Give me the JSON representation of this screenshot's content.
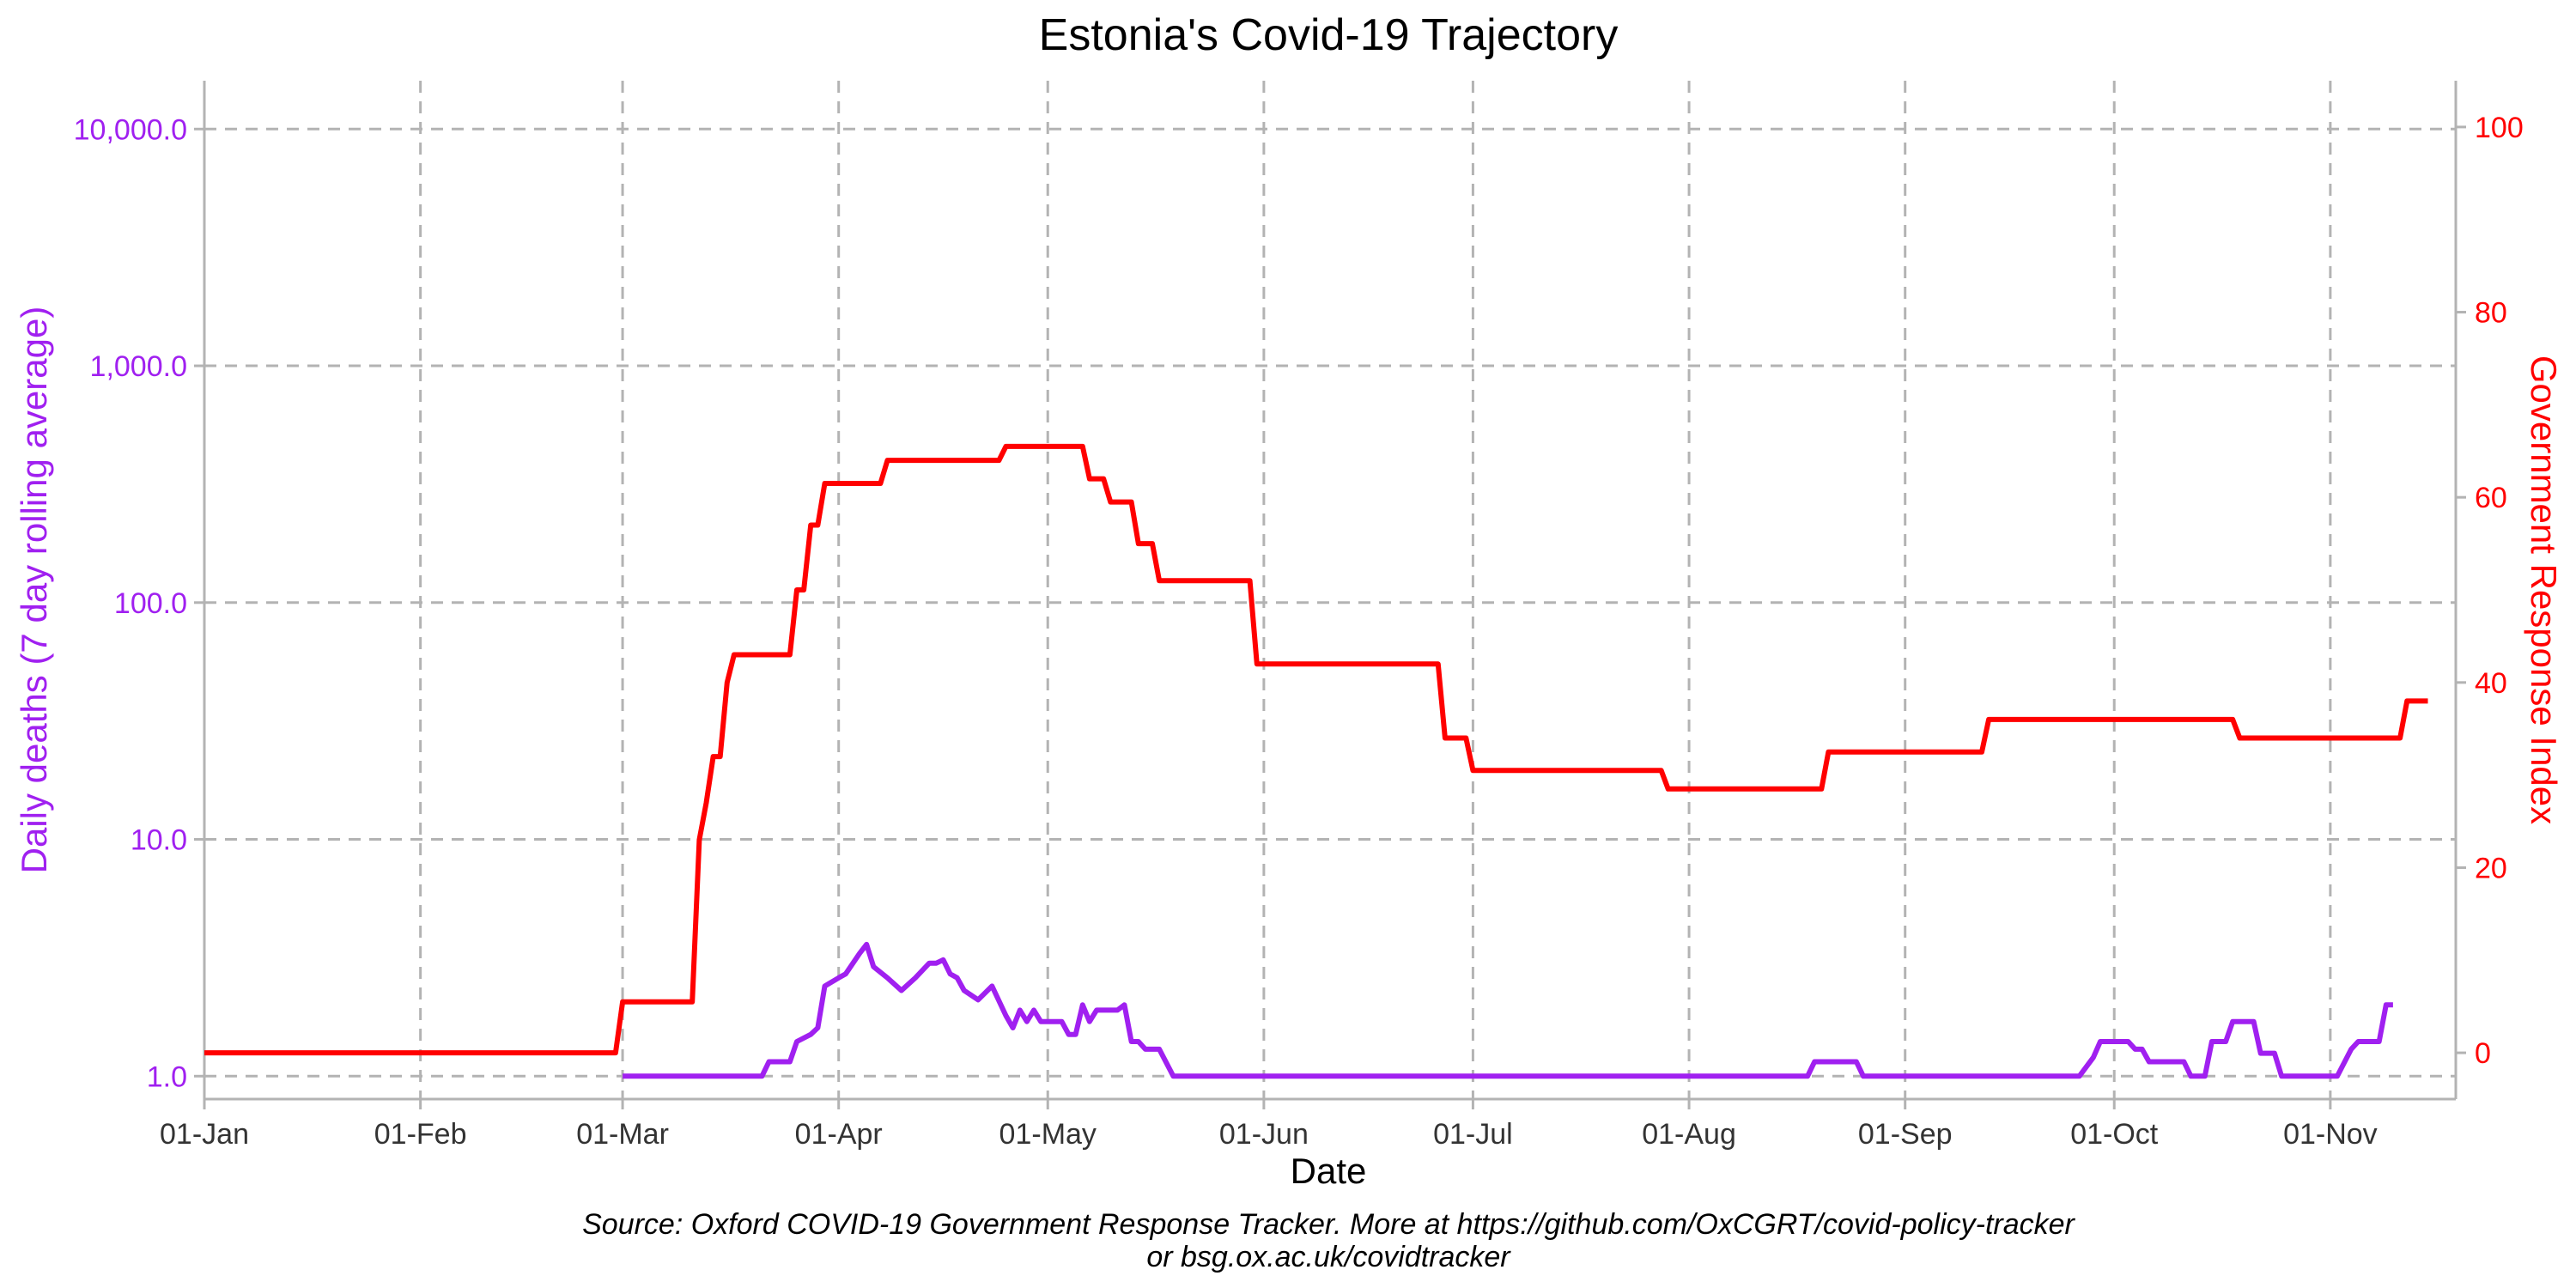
{
  "chart_data": {
    "type": "line",
    "title": "Estonia's Covid-19 Trajectory",
    "xlabel": "Date",
    "ylabel_left": "Daily deaths (7 day rolling average)",
    "ylabel_right": "Government Response Index",
    "caption_line1": "Source: Oxford COVID-19 Government Response Tracker. More at https://github.com/OxCGRT/covid-policy-tracker",
    "caption_line2": "or bsg.ox.ac.uk/covidtracker",
    "x_range": [
      "2020-01-01",
      "2020-11-19"
    ],
    "x_ticks": [
      {
        "date": "2020-01-01",
        "label": "01-Jan"
      },
      {
        "date": "2020-02-01",
        "label": "01-Feb"
      },
      {
        "date": "2020-03-01",
        "label": "01-Mar"
      },
      {
        "date": "2020-04-01",
        "label": "01-Apr"
      },
      {
        "date": "2020-05-01",
        "label": "01-May"
      },
      {
        "date": "2020-06-01",
        "label": "01-Jun"
      },
      {
        "date": "2020-07-01",
        "label": "01-Jul"
      },
      {
        "date": "2020-08-01",
        "label": "01-Aug"
      },
      {
        "date": "2020-09-01",
        "label": "01-Sep"
      },
      {
        "date": "2020-10-01",
        "label": "01-Oct"
      },
      {
        "date": "2020-11-01",
        "label": "01-Nov"
      }
    ],
    "y_left": {
      "scale": "log10",
      "range": [
        0.8,
        16000
      ],
      "ticks": [
        1,
        10,
        100,
        1000,
        10000
      ],
      "tick_labels": [
        "1.0",
        "10.0",
        "100.0",
        "1,000.0",
        "10,000.0"
      ]
    },
    "y_right": {
      "scale": "linear",
      "range": [
        -5,
        105
      ],
      "ticks": [
        0,
        20,
        40,
        60,
        80,
        100
      ],
      "tick_labels": [
        "0",
        "20",
        "40",
        "60",
        "80",
        "100"
      ]
    },
    "grid": true,
    "legend": "none",
    "colors": {
      "deaths": "#a020f0",
      "response": "#ff0000",
      "grid": "#b3b3b3",
      "axis_text": "#333333"
    },
    "series": [
      {
        "axis": "right",
        "color": "#ff0000",
        "points": [
          [
            "2020-01-01",
            0
          ],
          [
            "2020-02-29",
            0
          ],
          [
            "2020-03-01",
            5.5
          ],
          [
            "2020-03-11",
            5.5
          ],
          [
            "2020-03-12",
            23
          ],
          [
            "2020-03-13",
            27
          ],
          [
            "2020-03-14",
            32
          ],
          [
            "2020-03-15",
            32
          ],
          [
            "2020-03-16",
            40
          ],
          [
            "2020-03-17",
            43
          ],
          [
            "2020-03-25",
            43
          ],
          [
            "2020-03-26",
            50
          ],
          [
            "2020-03-27",
            50
          ],
          [
            "2020-03-28",
            57
          ],
          [
            "2020-03-29",
            57
          ],
          [
            "2020-03-30",
            61.5
          ],
          [
            "2020-04-07",
            61.5
          ],
          [
            "2020-04-08",
            64
          ],
          [
            "2020-04-24",
            64
          ],
          [
            "2020-04-25",
            65.5
          ],
          [
            "2020-05-06",
            65.5
          ],
          [
            "2020-05-07",
            62
          ],
          [
            "2020-05-09",
            62
          ],
          [
            "2020-05-10",
            59.5
          ],
          [
            "2020-05-13",
            59.5
          ],
          [
            "2020-05-14",
            55
          ],
          [
            "2020-05-16",
            55
          ],
          [
            "2020-05-17",
            51
          ],
          [
            "2020-05-30",
            51
          ],
          [
            "2020-05-31",
            42
          ],
          [
            "2020-06-26",
            42
          ],
          [
            "2020-06-27",
            34
          ],
          [
            "2020-06-30",
            34
          ],
          [
            "2020-07-01",
            30.5
          ],
          [
            "2020-07-28",
            30.5
          ],
          [
            "2020-07-29",
            28.5
          ],
          [
            "2020-08-20",
            28.5
          ],
          [
            "2020-08-21",
            32.5
          ],
          [
            "2020-09-12",
            32.5
          ],
          [
            "2020-09-13",
            36
          ],
          [
            "2020-10-18",
            36
          ],
          [
            "2020-10-19",
            34
          ],
          [
            "2020-11-11",
            34
          ],
          [
            "2020-11-12",
            38
          ],
          [
            "2020-11-15",
            38
          ]
        ]
      },
      {
        "axis": "left",
        "color": "#a020f0",
        "points": [
          [
            "2020-03-01",
            1.0
          ],
          [
            "2020-03-21",
            1.0
          ],
          [
            "2020-03-22",
            1.15
          ],
          [
            "2020-03-25",
            1.15
          ],
          [
            "2020-03-26",
            1.4
          ],
          [
            "2020-03-28",
            1.5
          ],
          [
            "2020-03-29",
            1.6
          ],
          [
            "2020-03-30",
            2.4
          ],
          [
            "2020-04-01",
            2.6
          ],
          [
            "2020-04-02",
            2.7
          ],
          [
            "2020-04-04",
            3.3
          ],
          [
            "2020-04-05",
            3.6
          ],
          [
            "2020-04-06",
            2.9
          ],
          [
            "2020-04-08",
            2.6
          ],
          [
            "2020-04-10",
            2.3
          ],
          [
            "2020-04-12",
            2.6
          ],
          [
            "2020-04-14",
            3.0
          ],
          [
            "2020-04-15",
            3.0
          ],
          [
            "2020-04-16",
            3.1
          ],
          [
            "2020-04-17",
            2.7
          ],
          [
            "2020-04-18",
            2.6
          ],
          [
            "2020-04-19",
            2.3
          ],
          [
            "2020-04-21",
            2.1
          ],
          [
            "2020-04-23",
            2.4
          ],
          [
            "2020-04-25",
            1.8
          ],
          [
            "2020-04-26",
            1.6
          ],
          [
            "2020-04-27",
            1.9
          ],
          [
            "2020-04-28",
            1.7
          ],
          [
            "2020-04-29",
            1.9
          ],
          [
            "2020-04-30",
            1.7
          ],
          [
            "2020-05-03",
            1.7
          ],
          [
            "2020-05-04",
            1.5
          ],
          [
            "2020-05-05",
            1.5
          ],
          [
            "2020-05-06",
            2.0
          ],
          [
            "2020-05-07",
            1.7
          ],
          [
            "2020-05-08",
            1.9
          ],
          [
            "2020-05-11",
            1.9
          ],
          [
            "2020-05-12",
            2.0
          ],
          [
            "2020-05-13",
            1.4
          ],
          [
            "2020-05-14",
            1.4
          ],
          [
            "2020-05-15",
            1.3
          ],
          [
            "2020-05-17",
            1.3
          ],
          [
            "2020-05-19",
            1.0
          ],
          [
            "2020-08-18",
            1.0
          ],
          [
            "2020-08-19",
            1.15
          ],
          [
            "2020-08-25",
            1.15
          ],
          [
            "2020-08-26",
            1.0
          ],
          [
            "2020-09-26",
            1.0
          ],
          [
            "2020-09-28",
            1.2
          ],
          [
            "2020-09-29",
            1.4
          ],
          [
            "2020-10-03",
            1.4
          ],
          [
            "2020-10-04",
            1.3
          ],
          [
            "2020-10-05",
            1.3
          ],
          [
            "2020-10-06",
            1.15
          ],
          [
            "2020-10-11",
            1.15
          ],
          [
            "2020-10-12",
            1.0
          ],
          [
            "2020-10-14",
            1.0
          ],
          [
            "2020-10-15",
            1.4
          ],
          [
            "2020-10-17",
            1.4
          ],
          [
            "2020-10-18",
            1.7
          ],
          [
            "2020-10-21",
            1.7
          ],
          [
            "2020-10-22",
            1.25
          ],
          [
            "2020-10-24",
            1.25
          ],
          [
            "2020-10-25",
            1.0
          ],
          [
            "2020-11-02",
            1.0
          ],
          [
            "2020-11-04",
            1.3
          ],
          [
            "2020-11-05",
            1.4
          ],
          [
            "2020-11-08",
            1.4
          ],
          [
            "2020-11-09",
            2.0
          ],
          [
            "2020-11-10",
            2.0
          ]
        ]
      }
    ]
  }
}
